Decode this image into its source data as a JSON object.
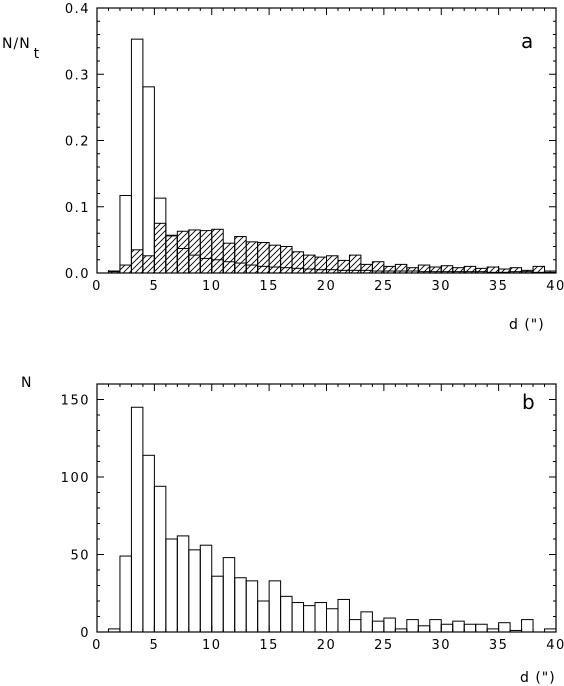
{
  "chart_data": [
    {
      "type": "bar",
      "panel_label": "a",
      "xlabel": "d (\")",
      "ylabel": "N/N",
      "ylabel_sub": "t",
      "xlim": [
        0,
        40
      ],
      "ylim": [
        0,
        0.4
      ],
      "xticks": [
        0,
        5,
        10,
        15,
        20,
        25,
        30,
        35,
        40
      ],
      "yticks": [
        0.0,
        0.1,
        0.2,
        0.3,
        0.4
      ],
      "ytick_labels": [
        "0.0",
        "0.1",
        "0.2",
        "0.3",
        "0.4"
      ],
      "bin_width": 1,
      "bin_start": 1,
      "series": [
        {
          "style": "open",
          "values": [
            0.003,
            0.117,
            0.353,
            0.281,
            0.113,
            0.057,
            0.037,
            0.027,
            0.022,
            0.02,
            0.017,
            0.015,
            0.012,
            0.01,
            0.009,
            0.008,
            0.007,
            0.006,
            0.005,
            0.005,
            0.004,
            0.004,
            0.004,
            0.003,
            0.003,
            0.003,
            0.003,
            0.002,
            0.002,
            0.002,
            0.002,
            0.002,
            0.002,
            0.001,
            0.001,
            0.002,
            0.002,
            0.001,
            0.001
          ]
        },
        {
          "style": "hatched",
          "values": [
            0.002,
            0.012,
            0.035,
            0.026,
            0.075,
            0.056,
            0.063,
            0.065,
            0.064,
            0.066,
            0.045,
            0.055,
            0.047,
            0.046,
            0.042,
            0.04,
            0.032,
            0.027,
            0.024,
            0.026,
            0.019,
            0.027,
            0.013,
            0.017,
            0.01,
            0.013,
            0.008,
            0.012,
            0.009,
            0.011,
            0.008,
            0.01,
            0.007,
            0.009,
            0.006,
            0.008,
            0.004,
            0.01,
            0.003
          ]
        }
      ]
    },
    {
      "type": "bar",
      "panel_label": "b",
      "xlabel": "d (\")",
      "ylabel": "N",
      "xlim": [
        0,
        40
      ],
      "ylim": [
        0,
        160
      ],
      "xticks": [
        0,
        5,
        10,
        15,
        20,
        25,
        30,
        35,
        40
      ],
      "yticks": [
        0,
        50,
        100,
        150
      ],
      "ytick_labels": [
        "0",
        "50",
        "100",
        "150"
      ],
      "bin_width": 1,
      "bin_start": 1,
      "series": [
        {
          "style": "open",
          "values": [
            2,
            49,
            145,
            114,
            94,
            60,
            62,
            53,
            56,
            36,
            48,
            35,
            33,
            20,
            33,
            23,
            19,
            17,
            19,
            15,
            21,
            8,
            13,
            7,
            9,
            2,
            8,
            4,
            8,
            5,
            7,
            5,
            5,
            2,
            6,
            1,
            8,
            0,
            2
          ]
        }
      ]
    }
  ]
}
